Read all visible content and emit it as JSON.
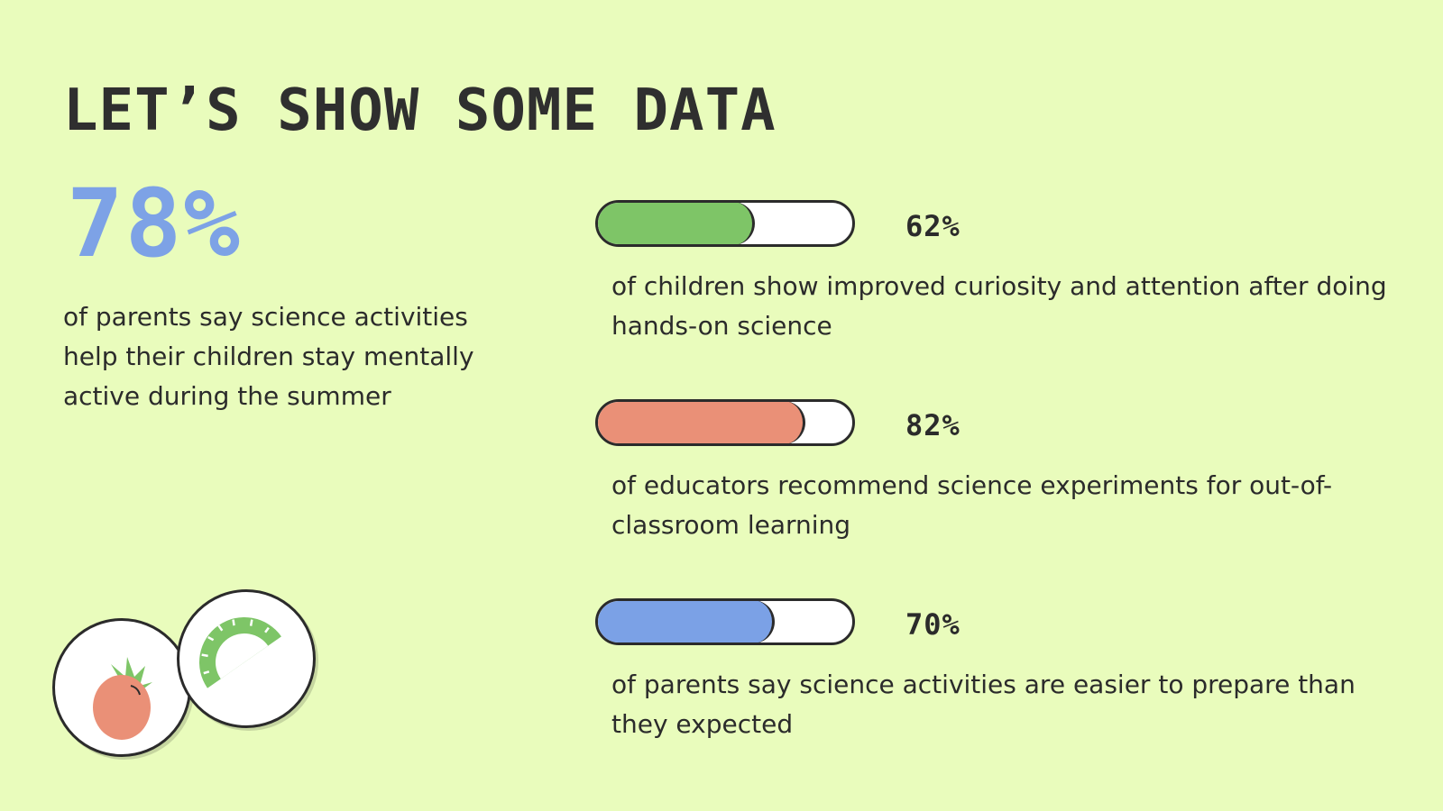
{
  "title": "LET’S SHOW SOME DATA",
  "highlight": {
    "value": "78%",
    "description": "of parents say science activities help their children stay mentally active during the summer",
    "color": "#7da2e6"
  },
  "stats": [
    {
      "value": "62%",
      "progress": 0.62,
      "color": "#7ec567",
      "description": "of children show improved curiosity and attention after doing hands-on science"
    },
    {
      "value": "82%",
      "progress": 0.82,
      "color": "#ea9077",
      "description": "of educators recommend science experiments for out-of-classroom learning"
    },
    {
      "value": "70%",
      "progress": 0.7,
      "color": "#7ba1e6",
      "description": "of parents say science activities are easier to prepare than they expected"
    }
  ],
  "icons": {
    "fruit": "strawberry-icon",
    "tool": "protractor-icon"
  },
  "colors": {
    "background": "#e9fcbc",
    "text": "#2b2b2b",
    "fruit": "#ea9077",
    "leaf": "#7ec567"
  }
}
